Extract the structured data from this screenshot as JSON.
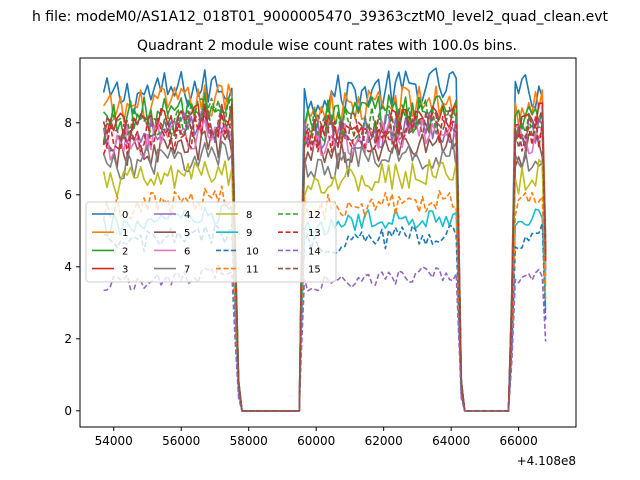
{
  "figure": {
    "suptitle": "h file: modeM0/AS1A12_018T01_9000005470_39363cztM0_level2_quad_clean.evt",
    "offset_label": "+4.108e8"
  },
  "chart_data": {
    "type": "line",
    "title": "Quadrant 2 module wise count rates with 100.0s bins.",
    "xlabel": "",
    "ylabel": "",
    "xlim": [
      53000,
      67700
    ],
    "ylim": [
      -0.45,
      9.8
    ],
    "xticks": [
      54000,
      56000,
      58000,
      60000,
      62000,
      64000,
      66000
    ],
    "xtick_labels": [
      "54000",
      "56000",
      "58000",
      "60000",
      "62000",
      "64000",
      "66000"
    ],
    "yticks": [
      0,
      2,
      4,
      6,
      8
    ],
    "ytick_labels": [
      "0",
      "2",
      "4",
      "6",
      "8"
    ],
    "grid": false,
    "legend": {
      "placement": "center-left",
      "columns": 4
    },
    "segments": [
      {
        "start": 53700,
        "end": 57600
      },
      {
        "start": 59550,
        "end": 64200
      },
      {
        "start": 65800,
        "end": 66800
      }
    ],
    "gaps": [
      {
        "start": 57600,
        "end": 59550
      },
      {
        "start": 64200,
        "end": 65800
      }
    ],
    "bin_width_s": 100,
    "series": [
      {
        "name": "0",
        "color": "#1f77b4",
        "dashed": false,
        "level": 8.7
      },
      {
        "name": "1",
        "color": "#ff7f0e",
        "dashed": false,
        "level": 8.3
      },
      {
        "name": "2",
        "color": "#2ca02c",
        "dashed": false,
        "level": 8.1
      },
      {
        "name": "3",
        "color": "#d62728",
        "dashed": false,
        "level": 7.8
      },
      {
        "name": "4",
        "color": "#9467bd",
        "dashed": false,
        "level": 7.6
      },
      {
        "name": "5",
        "color": "#8c564b",
        "dashed": false,
        "level": 7.1
      },
      {
        "name": "6",
        "color": "#e377c2",
        "dashed": false,
        "level": 7.4
      },
      {
        "name": "7",
        "color": "#7f7f7f",
        "dashed": false,
        "level": 6.8
      },
      {
        "name": "8",
        "color": "#bcbd22",
        "dashed": false,
        "level": 6.3
      },
      {
        "name": "9",
        "color": "#17becf",
        "dashed": false,
        "level": 5.1
      },
      {
        "name": "10",
        "color": "#1f77b4",
        "dashed": true,
        "level": 4.6
      },
      {
        "name": "11",
        "color": "#ff7f0e",
        "dashed": true,
        "level": 5.6
      },
      {
        "name": "12",
        "color": "#2ca02c",
        "dashed": true,
        "level": 7.9
      },
      {
        "name": "13",
        "color": "#d62728",
        "dashed": true,
        "level": 7.5
      },
      {
        "name": "14",
        "color": "#9467bd",
        "dashed": true,
        "level": 3.5
      },
      {
        "name": "15",
        "color": "#8c564b",
        "dashed": true,
        "level": 7.7
      }
    ]
  }
}
